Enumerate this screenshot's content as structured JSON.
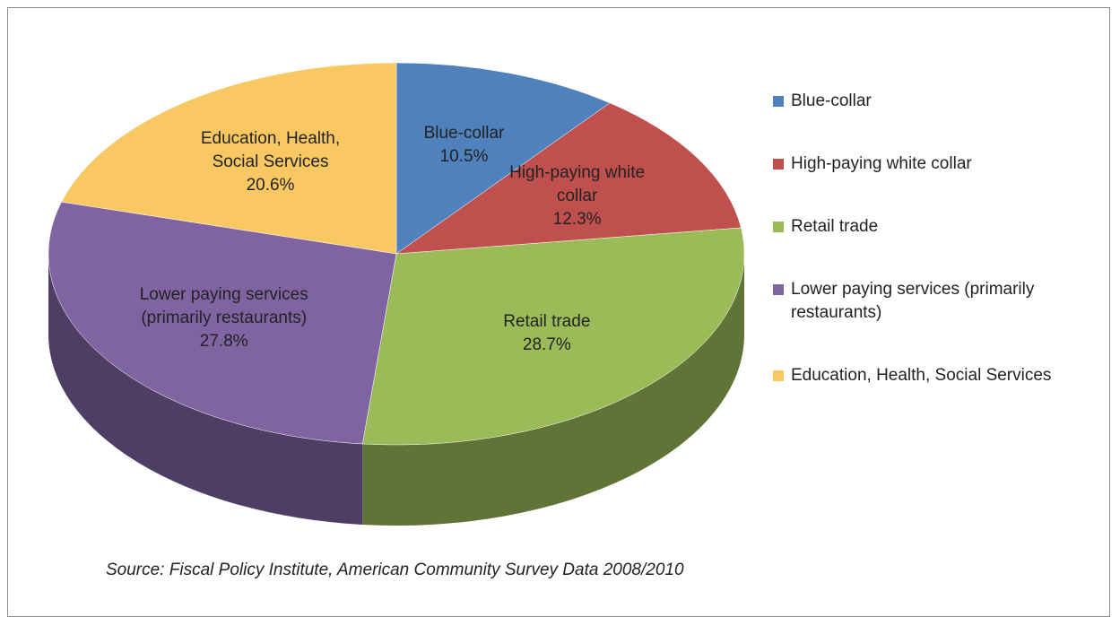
{
  "chart_data": {
    "type": "pie",
    "categories": [
      "Blue-collar",
      "High-paying white collar",
      "Retail trade",
      "Lower paying services (primarily restaurants)",
      "Education, Health, Social Services"
    ],
    "values": [
      10.5,
      12.3,
      28.7,
      27.8,
      20.6
    ],
    "value_labels": [
      "10.5%",
      "12.3%",
      "28.7%",
      "27.8%",
      "20.6%"
    ],
    "colors": [
      "#4f81bd",
      "#c0504d",
      "#9bbb59",
      "#8064a2",
      "#fac862"
    ],
    "legend": "right",
    "source": "Source:  Fiscal Policy Institute, American Community Survey Data 2008/2010"
  }
}
